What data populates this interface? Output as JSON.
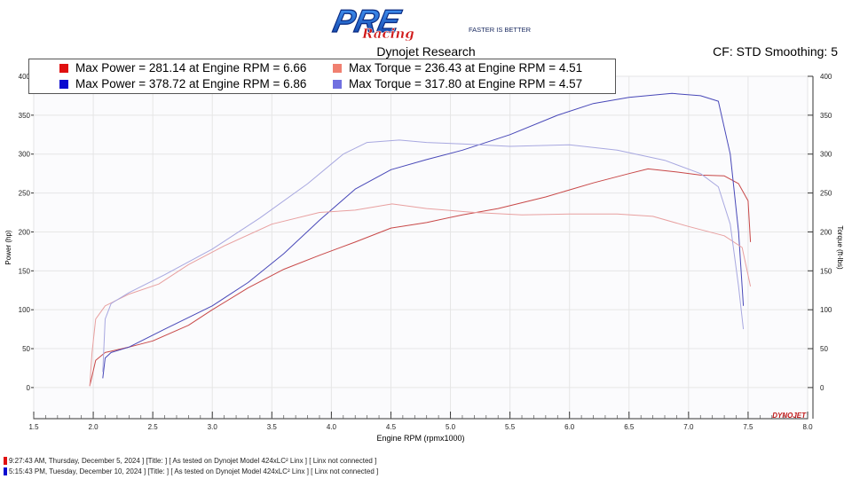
{
  "header": {
    "logo_text": "PRE Racing",
    "logo_tagline": "FASTER IS BETTER",
    "title": "Dynojet Research",
    "cf_info": "CF: STD Smoothing: 5"
  },
  "legend": [
    {
      "text": "Max Power = 281.14 at Engine RPM = 6.66",
      "color": "#e01010"
    },
    {
      "text": "Max Power = 378.72 at Engine RPM = 6.86",
      "color": "#0a0ad0"
    },
    {
      "text": "Max Torque = 236.43 at Engine RPM = 4.51",
      "color": "#f08070"
    },
    {
      "text": "Max Torque = 317.80 at Engine RPM = 4.57",
      "color": "#7070e0"
    }
  ],
  "footer": [
    {
      "text": "9:27:43 AM, Thursday, December 5, 2024 ] [Title: ]  [ As tested on Dynojet Model 424xLC² Linx ] [ Linx not connected ]",
      "color": "#e01010"
    },
    {
      "text": "5:15:43 PM, Tuesday, December 10, 2024 ] [Title: ]  [ As tested on Dynojet Model 424xLC² Linx ] [ Linx not connected ]",
      "color": "#0a0ad0"
    }
  ],
  "brand_mark": "DYNOJET",
  "chart_data": {
    "type": "line",
    "xlabel": "Engine RPM (rpmx1000)",
    "ylabel": "Power (hp)",
    "y2label": "Torque (ft-lbs)",
    "xlim": [
      1.5,
      8.0
    ],
    "ylim": [
      -40,
      400
    ],
    "y2lim": [
      -40,
      400
    ],
    "x_ticks": [
      "1.5",
      "2.0",
      "2.5",
      "3.0",
      "3.5",
      "4.0",
      "4.5",
      "5.0",
      "5.5",
      "6.0",
      "6.5",
      "7.0",
      "7.5",
      "8.0"
    ],
    "y_ticks": [
      "400",
      "350",
      "300",
      "250",
      "200",
      "150",
      "100",
      "50",
      "0"
    ],
    "y2_ticks": [
      "400",
      "350",
      "300",
      "250",
      "200",
      "150",
      "100",
      "50",
      "0"
    ],
    "grid": true,
    "series": [
      {
        "name": "Max Power = 281.14 at Engine RPM = 6.66",
        "color": "#c84848",
        "x": [
          1.97,
          2.02,
          2.1,
          2.3,
          2.5,
          2.8,
          3.0,
          3.3,
          3.6,
          3.9,
          4.2,
          4.5,
          4.8,
          5.1,
          5.4,
          5.8,
          6.2,
          6.5,
          6.66,
          6.9,
          7.1,
          7.3,
          7.42,
          7.5,
          7.52
        ],
        "y": [
          2,
          35,
          45,
          52,
          60,
          80,
          100,
          128,
          152,
          170,
          187,
          205,
          212,
          222,
          230,
          245,
          263,
          275,
          281,
          277,
          273,
          272,
          262,
          240,
          187
        ]
      },
      {
        "name": "Max Power = 378.72 at Engine RPM = 6.86",
        "color": "#4848b8",
        "x": [
          2.08,
          2.1,
          2.15,
          2.3,
          2.6,
          3.0,
          3.3,
          3.6,
          3.9,
          4.2,
          4.5,
          4.8,
          5.1,
          5.5,
          5.9,
          6.2,
          6.5,
          6.86,
          7.1,
          7.25,
          7.35,
          7.42,
          7.46
        ],
        "y": [
          12,
          38,
          45,
          52,
          75,
          105,
          135,
          172,
          215,
          255,
          280,
          293,
          305,
          325,
          350,
          365,
          373,
          378,
          375,
          368,
          300,
          200,
          105
        ]
      },
      {
        "name": "Max Torque = 236.43 at Engine RPM = 4.51",
        "color": "#e8a0a0",
        "x": [
          1.97,
          1.99,
          2.02,
          2.1,
          2.3,
          2.55,
          2.8,
          3.1,
          3.5,
          3.9,
          4.2,
          4.51,
          4.8,
          5.2,
          5.6,
          6.0,
          6.4,
          6.7,
          7.0,
          7.3,
          7.45,
          7.52
        ],
        "y": [
          2,
          45,
          88,
          105,
          120,
          133,
          158,
          182,
          210,
          225,
          228,
          236,
          230,
          225,
          222,
          223,
          223,
          220,
          207,
          195,
          180,
          130
        ]
      },
      {
        "name": "Max Torque = 317.80 at Engine RPM = 4.57",
        "color": "#a8a8e0",
        "x": [
          2.08,
          2.1,
          2.15,
          2.3,
          2.6,
          3.0,
          3.4,
          3.8,
          4.1,
          4.3,
          4.57,
          4.8,
          5.1,
          5.5,
          6.0,
          6.4,
          6.8,
          7.1,
          7.25,
          7.35,
          7.42,
          7.46
        ],
        "y": [
          20,
          88,
          108,
          122,
          145,
          178,
          218,
          262,
          300,
          315,
          318,
          315,
          313,
          310,
          312,
          305,
          292,
          275,
          258,
          210,
          130,
          75
        ]
      }
    ]
  }
}
